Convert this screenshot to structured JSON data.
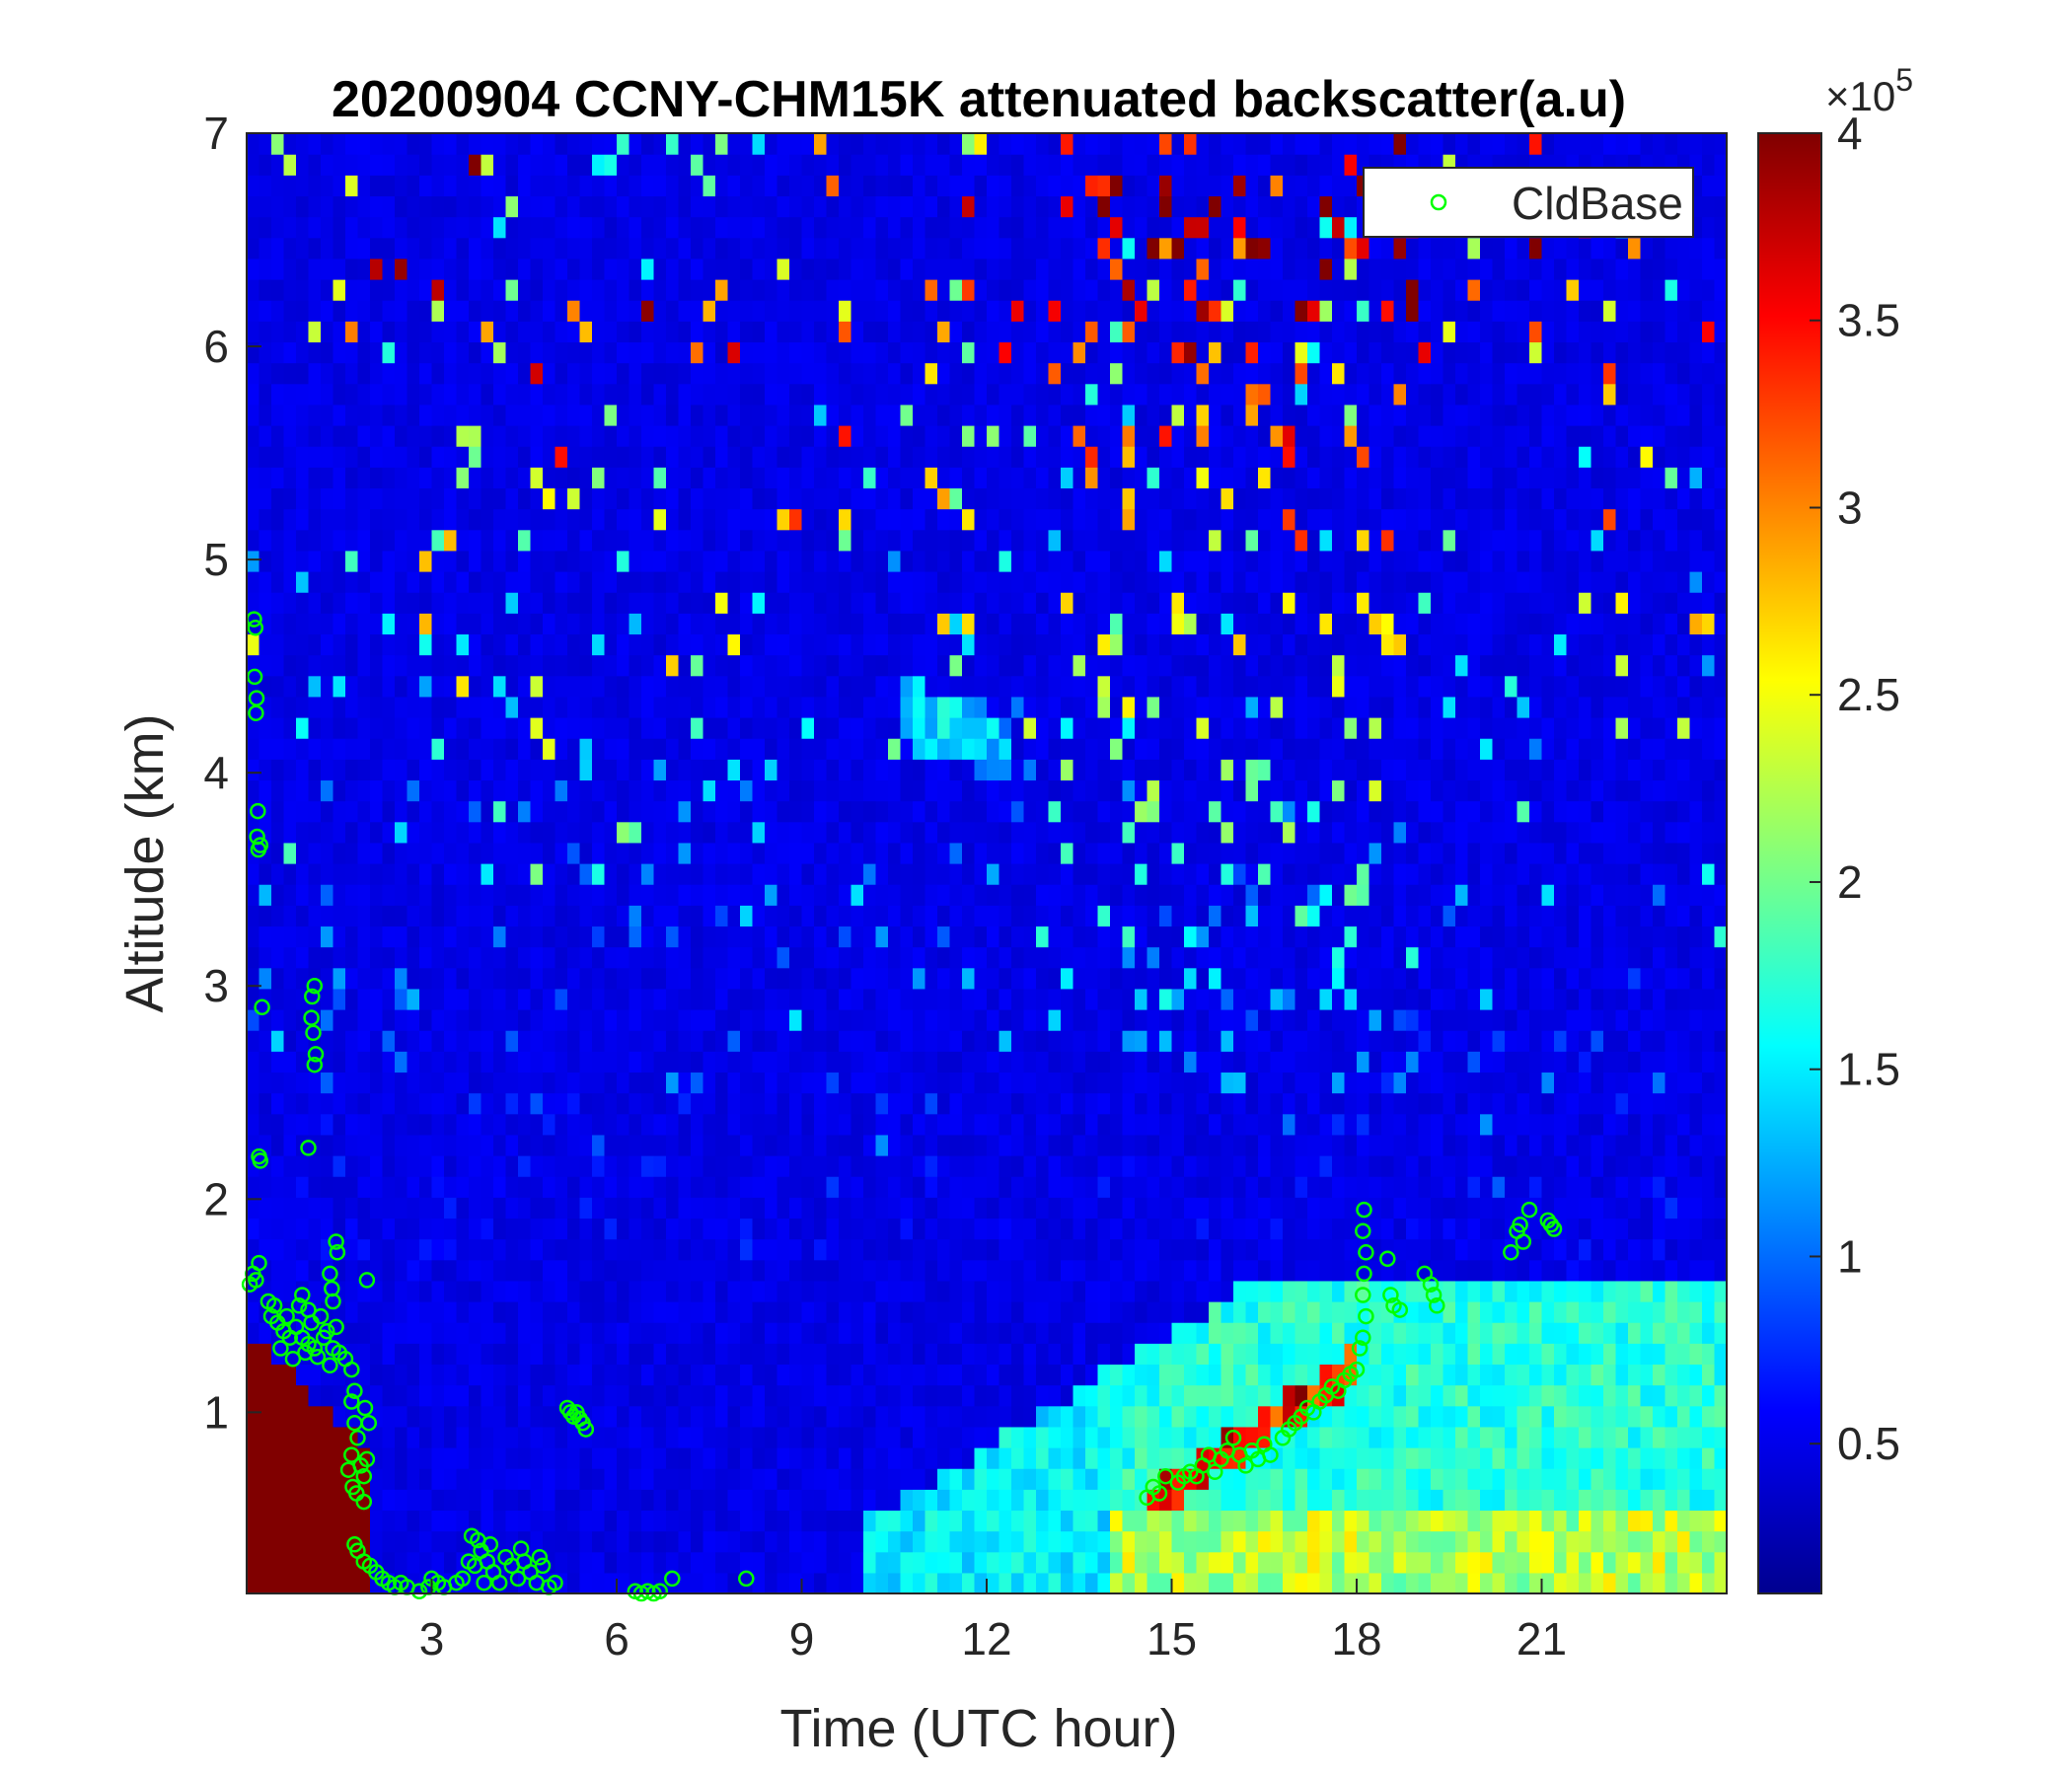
{
  "chart_data": {
    "type": "heatmap",
    "title": "20200904 CCNY-CHM15K attenuated backscatter(a.u)",
    "xlabel": "Time (UTC hour)",
    "ylabel": "Altitude (km)",
    "xlim": [
      0,
      24
    ],
    "ylim": [
      0.15,
      7
    ],
    "x_ticks": [
      3,
      6,
      9,
      12,
      15,
      18,
      21
    ],
    "y_ticks": [
      1,
      2,
      3,
      4,
      5,
      6,
      7
    ],
    "colorbar": {
      "colormap": "jet",
      "range": [
        0.1,
        4
      ],
      "ticks": [
        0.5,
        1,
        1.5,
        2,
        2.5,
        3,
        3.5,
        4
      ],
      "exponent_label": "×10",
      "exponent_power": "5"
    },
    "legend": {
      "placement": "top-right",
      "entries": [
        {
          "name": "CldBase",
          "marker": "circle",
          "color": "#00ff00"
        }
      ]
    },
    "series": [
      {
        "name": "CldBase",
        "marker_color": "#00ff00",
        "points": [
          [
            0.05,
            1.6
          ],
          [
            0.1,
            1.65
          ],
          [
            0.15,
            1.62
          ],
          [
            0.2,
            1.7
          ],
          [
            0.12,
            4.72
          ],
          [
            0.14,
            4.68
          ],
          [
            0.13,
            4.45
          ],
          [
            0.16,
            4.35
          ],
          [
            0.15,
            4.28
          ],
          [
            0.18,
            3.82
          ],
          [
            0.17,
            3.7
          ],
          [
            0.19,
            3.64
          ],
          [
            0.22,
            3.66
          ],
          [
            0.25,
            2.9
          ],
          [
            0.2,
            2.2
          ],
          [
            0.22,
            2.18
          ],
          [
            0.35,
            1.52
          ],
          [
            0.4,
            1.45
          ],
          [
            0.5,
            1.42
          ],
          [
            0.6,
            1.38
          ],
          [
            0.7,
            1.35
          ],
          [
            0.8,
            1.4
          ],
          [
            0.9,
            1.35
          ],
          [
            1.0,
            1.32
          ],
          [
            1.1,
            1.3
          ],
          [
            1.2,
            1.45
          ],
          [
            1.3,
            1.38
          ],
          [
            1.4,
            1.3
          ],
          [
            1.5,
            1.28
          ],
          [
            1.6,
            1.25
          ],
          [
            1.7,
            1.2
          ],
          [
            1.75,
            1.1
          ],
          [
            0.45,
            1.5
          ],
          [
            0.55,
            1.3
          ],
          [
            0.65,
            1.45
          ],
          [
            0.75,
            1.25
          ],
          [
            0.85,
            1.5
          ],
          [
            0.95,
            1.28
          ],
          [
            1.05,
            1.42
          ],
          [
            1.15,
            1.26
          ],
          [
            0.9,
            1.55
          ],
          [
            1.0,
            1.48
          ],
          [
            1.25,
            1.35
          ],
          [
            1.35,
            1.22
          ],
          [
            1.45,
            1.4
          ],
          [
            1.0,
            2.24
          ],
          [
            1.05,
            2.85
          ],
          [
            1.1,
            3.0
          ],
          [
            1.08,
            2.78
          ],
          [
            1.12,
            2.68
          ],
          [
            1.06,
            2.95
          ],
          [
            1.1,
            2.63
          ],
          [
            1.35,
            1.65
          ],
          [
            1.38,
            1.58
          ],
          [
            1.4,
            1.52
          ],
          [
            1.45,
            1.8
          ],
          [
            1.47,
            1.75
          ],
          [
            1.95,
            1.62
          ],
          [
            1.7,
            1.05
          ],
          [
            1.75,
            0.95
          ],
          [
            1.8,
            0.88
          ],
          [
            1.85,
            0.75
          ],
          [
            1.9,
            0.7
          ],
          [
            1.7,
            0.8
          ],
          [
            1.65,
            0.73
          ],
          [
            1.72,
            0.65
          ],
          [
            1.78,
            0.62
          ],
          [
            1.9,
            0.58
          ],
          [
            1.95,
            0.78
          ],
          [
            1.92,
            1.02
          ],
          [
            1.98,
            0.95
          ],
          [
            1.75,
            0.38
          ],
          [
            1.8,
            0.35
          ],
          [
            1.9,
            0.3
          ],
          [
            2.0,
            0.28
          ],
          [
            2.1,
            0.25
          ],
          [
            2.2,
            0.22
          ],
          [
            2.3,
            0.2
          ],
          [
            2.4,
            0.18
          ],
          [
            2.5,
            0.2
          ],
          [
            2.6,
            0.18
          ],
          [
            2.8,
            0.16
          ],
          [
            2.95,
            0.18
          ],
          [
            3.0,
            0.22
          ],
          [
            3.1,
            0.2
          ],
          [
            3.2,
            0.18
          ],
          [
            3.4,
            0.2
          ],
          [
            3.5,
            0.22
          ],
          [
            3.6,
            0.3
          ],
          [
            3.7,
            0.28
          ],
          [
            3.75,
            0.4
          ],
          [
            3.8,
            0.35
          ],
          [
            3.85,
            0.2
          ],
          [
            3.9,
            0.3
          ],
          [
            4.0,
            0.25
          ],
          [
            4.1,
            0.2
          ],
          [
            4.2,
            0.32
          ],
          [
            4.3,
            0.28
          ],
          [
            4.4,
            0.22
          ],
          [
            4.5,
            0.3
          ],
          [
            4.6,
            0.25
          ],
          [
            4.7,
            0.2
          ],
          [
            4.8,
            0.28
          ],
          [
            4.9,
            0.18
          ],
          [
            5.0,
            0.2
          ],
          [
            3.65,
            0.42
          ],
          [
            3.95,
            0.38
          ],
          [
            4.45,
            0.36
          ],
          [
            4.75,
            0.32
          ],
          [
            5.2,
            1.02
          ],
          [
            5.25,
            1.0
          ],
          [
            5.3,
            0.98
          ],
          [
            5.35,
            1.0
          ],
          [
            5.4,
            0.97
          ],
          [
            5.45,
            0.95
          ],
          [
            5.5,
            0.92
          ],
          [
            6.3,
            0.16
          ],
          [
            6.4,
            0.15
          ],
          [
            6.5,
            0.16
          ],
          [
            6.6,
            0.15
          ],
          [
            6.7,
            0.16
          ],
          [
            6.9,
            0.22
          ],
          [
            8.1,
            0.22
          ],
          [
            14.6,
            0.6
          ],
          [
            14.7,
            0.65
          ],
          [
            14.8,
            0.62
          ],
          [
            14.9,
            0.7
          ],
          [
            15.1,
            0.67
          ],
          [
            15.2,
            0.7
          ],
          [
            15.3,
            0.72
          ],
          [
            15.4,
            0.7
          ],
          [
            15.5,
            0.75
          ],
          [
            15.6,
            0.8
          ],
          [
            15.7,
            0.72
          ],
          [
            15.8,
            0.78
          ],
          [
            15.9,
            0.82
          ],
          [
            16.0,
            0.88
          ],
          [
            16.1,
            0.8
          ],
          [
            16.2,
            0.75
          ],
          [
            16.3,
            0.82
          ],
          [
            16.4,
            0.78
          ],
          [
            16.5,
            0.85
          ],
          [
            16.6,
            0.8
          ],
          [
            16.8,
            0.88
          ],
          [
            16.9,
            0.92
          ],
          [
            17.0,
            0.95
          ],
          [
            17.1,
            0.98
          ],
          [
            17.2,
            1.02
          ],
          [
            17.3,
            1.0
          ],
          [
            17.4,
            1.05
          ],
          [
            17.5,
            1.08
          ],
          [
            17.6,
            1.12
          ],
          [
            17.7,
            1.1
          ],
          [
            17.8,
            1.15
          ],
          [
            17.9,
            1.18
          ],
          [
            18.0,
            1.2
          ],
          [
            18.05,
            1.3
          ],
          [
            18.1,
            1.35
          ],
          [
            18.15,
            1.45
          ],
          [
            18.1,
            1.55
          ],
          [
            18.12,
            1.65
          ],
          [
            18.15,
            1.75
          ],
          [
            18.1,
            1.85
          ],
          [
            18.12,
            1.95
          ],
          [
            18.5,
            1.72
          ],
          [
            18.6,
            1.5
          ],
          [
            18.7,
            1.48
          ],
          [
            18.55,
            1.55
          ],
          [
            19.2,
            1.6
          ],
          [
            19.25,
            1.55
          ],
          [
            19.3,
            1.5
          ],
          [
            19.1,
            1.65
          ],
          [
            20.5,
            1.75
          ],
          [
            20.6,
            1.85
          ],
          [
            20.65,
            1.88
          ],
          [
            20.7,
            1.8
          ],
          [
            20.8,
            1.95
          ],
          [
            21.1,
            1.9
          ],
          [
            21.15,
            1.88
          ],
          [
            21.2,
            1.86
          ]
        ]
      }
    ]
  }
}
